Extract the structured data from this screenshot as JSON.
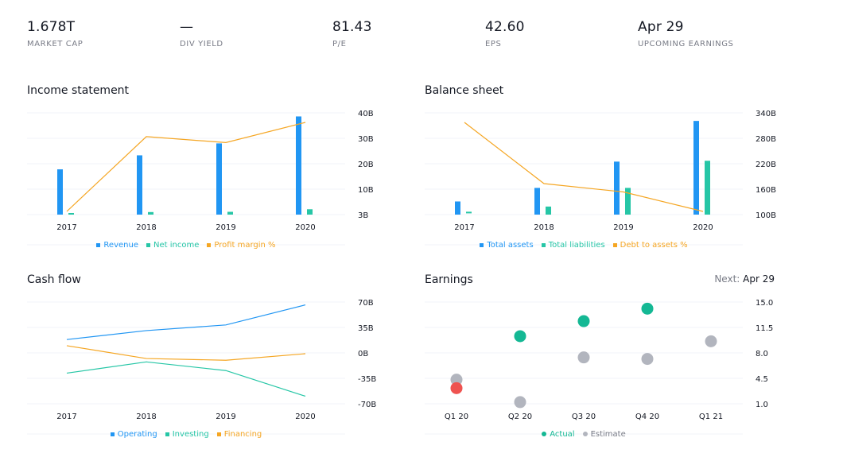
{
  "stats": [
    {
      "value": "1.678T",
      "label": "MARKET CAP"
    },
    {
      "value": "—",
      "label": "DIV YIELD"
    },
    {
      "value": "81.43",
      "label": "P/E"
    },
    {
      "value": "42.60",
      "label": "EPS"
    },
    {
      "value": "Apr 29",
      "label": "UPCOMING EARNINGS"
    }
  ],
  "colors": {
    "blue": "#2196f3",
    "teal": "#26c6a6",
    "orange": "#f5a623",
    "green": "#14b894",
    "red": "#ef5350",
    "gray": "#b2b5be",
    "grid": "#f0f3fa",
    "axis": "#131722",
    "muted": "#787b86"
  },
  "income": {
    "title": "Income statement"
  },
  "balance": {
    "title": "Balance sheet"
  },
  "cashflow": {
    "title": "Cash flow"
  },
  "earnings": {
    "title": "Earnings",
    "next_label": "Next:",
    "next_value": "Apr 29"
  },
  "chart_data": [
    {
      "id": "income",
      "type": "bar",
      "categories": [
        "2017",
        "2018",
        "2019",
        "2020"
      ],
      "series": [
        {
          "name": "Revenue",
          "type": "bar",
          "color": "#2196f3",
          "values": [
            178,
            233,
            280,
            386
          ]
        },
        {
          "name": "Net income",
          "type": "bar",
          "color": "#26c6a6",
          "values": [
            -3,
            10,
            11,
            21
          ]
        },
        {
          "name": "Profit margin %",
          "type": "line",
          "color": "#f5a623",
          "values": [
            -2,
            4.3,
            3.8,
            5.5
          ]
        }
      ],
      "yticks": [
        "40B",
        "30B",
        "20B",
        "10B",
        "3B"
      ],
      "ylim": [
        0,
        400
      ]
    },
    {
      "id": "balance",
      "type": "bar",
      "categories": [
        "2017",
        "2018",
        "2019",
        "2020"
      ],
      "series": [
        {
          "name": "Total assets",
          "type": "bar",
          "color": "#2196f3",
          "values": [
            131,
            163,
            225,
            321
          ]
        },
        {
          "name": "Total liabilities",
          "type": "bar",
          "color": "#26c6a6",
          "values": [
            103,
            119,
            163,
            227
          ]
        },
        {
          "name": "Debt to assets %",
          "type": "line",
          "color": "#f5a623",
          "values": [
            60,
            38,
            35,
            28
          ]
        }
      ],
      "yticks": [
        "340B",
        "280B",
        "220B",
        "160B",
        "100B"
      ],
      "ylim": [
        100,
        340
      ]
    },
    {
      "id": "cashflow",
      "type": "line",
      "categories": [
        "2017",
        "2018",
        "2019",
        "2020"
      ],
      "series": [
        {
          "name": "Operating",
          "color": "#2196f3",
          "values": [
            18.4,
            30.7,
            38.5,
            66.1
          ]
        },
        {
          "name": "Investing",
          "color": "#26c6a6",
          "values": [
            -27.8,
            -12.4,
            -24.3,
            -59.6
          ]
        },
        {
          "name": "Financing",
          "color": "#f5a623",
          "values": [
            9.9,
            -7.7,
            -10.1,
            -1.1
          ]
        }
      ],
      "yticks": [
        "70B",
        "35B",
        "0B",
        "-35B",
        "-70B"
      ],
      "ylim": [
        -70,
        70
      ]
    },
    {
      "id": "earnings",
      "type": "scatter",
      "categories": [
        "Q1 20",
        "Q2 20",
        "Q3 20",
        "Q4 20",
        "Q1 21"
      ],
      "series": [
        {
          "name": "Actual",
          "color": "#14b894",
          "values": [
            3.15,
            10.3,
            12.37,
            14.09,
            null
          ],
          "missed_color": "#ef5350",
          "missed": [
            true,
            false,
            false,
            false,
            false
          ]
        },
        {
          "name": "Estimate",
          "color": "#b2b5be",
          "values": [
            4.32,
            1.23,
            7.38,
            7.17,
            9.6
          ]
        }
      ],
      "yticks": [
        "15.0",
        "11.5",
        "8.0",
        "4.5",
        "1.0"
      ],
      "ylim": [
        1,
        15
      ]
    }
  ]
}
